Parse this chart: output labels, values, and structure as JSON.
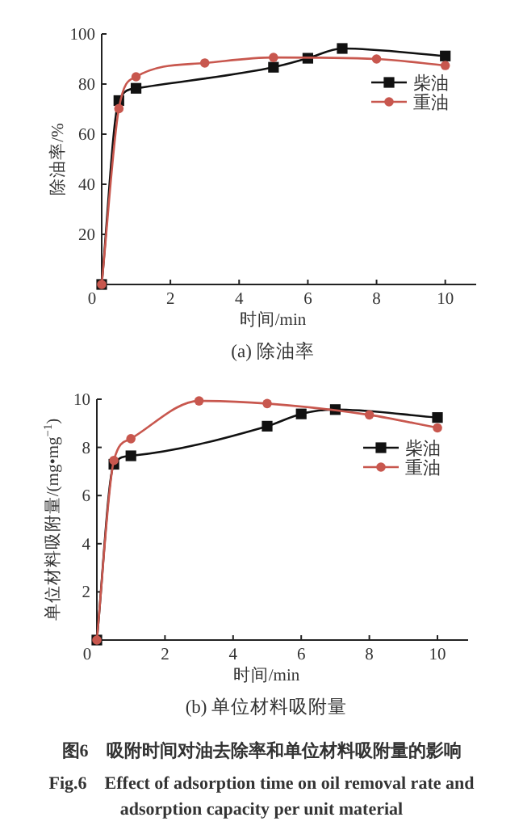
{
  "chart_data": [
    {
      "type": "line",
      "title": "(a) 除油率",
      "xlabel": "时间/min",
      "ylabel": "除油率/%",
      "xlim": [
        0,
        10.9
      ],
      "xticks": [
        0,
        2,
        4,
        6,
        8,
        10
      ],
      "ylim": [
        0,
        100
      ],
      "yticks": [
        20,
        40,
        60,
        80,
        100
      ],
      "legend": "right",
      "series": [
        {
          "name": "柴油",
          "color": "#111111",
          "marker": "square",
          "x": [
            0,
            0.5,
            1,
            5,
            6,
            7,
            10
          ],
          "values": [
            0,
            73.4,
            78.3,
            86.7,
            90.3,
            94.2,
            91.2
          ]
        },
        {
          "name": "重油",
          "color": "#c8574e",
          "marker": "circle",
          "x": [
            0,
            0.5,
            1,
            3,
            5,
            8,
            10
          ],
          "values": [
            0,
            70.2,
            82.9,
            88.4,
            90.6,
            90,
            87.4
          ]
        }
      ]
    },
    {
      "type": "line",
      "title": "(b) 单位材料吸附量",
      "xlabel": "时间/min",
      "ylabel": "单位材料吸附量/(mg•mg$^{−1}$)",
      "xlim": [
        0,
        10.9
      ],
      "xticks": [
        0,
        2,
        4,
        6,
        8,
        10
      ],
      "ylim": [
        0,
        10
      ],
      "yticks": [
        2,
        4,
        6,
        8,
        10
      ],
      "legend": "right",
      "series": [
        {
          "name": "柴油",
          "color": "#111111",
          "marker": "square",
          "x": [
            0,
            0.5,
            1,
            5,
            6,
            7,
            10
          ],
          "values": [
            0,
            7.3,
            7.65,
            8.88,
            9.39,
            9.57,
            9.24
          ]
        },
        {
          "name": "重油",
          "color": "#c8574e",
          "marker": "circle",
          "x": [
            0,
            0.5,
            1,
            3,
            5,
            8,
            10
          ],
          "values": [
            0,
            7.46,
            8.36,
            9.93,
            9.82,
            9.35,
            8.81
          ]
        }
      ],
      "annotations": [
        "图6　吸附时间对油去除率和单位材料吸附量的影响",
        "Fig.6　Effect of adsorption time on oil removal rate and adsorption capacity per unit material"
      ]
    }
  ]
}
